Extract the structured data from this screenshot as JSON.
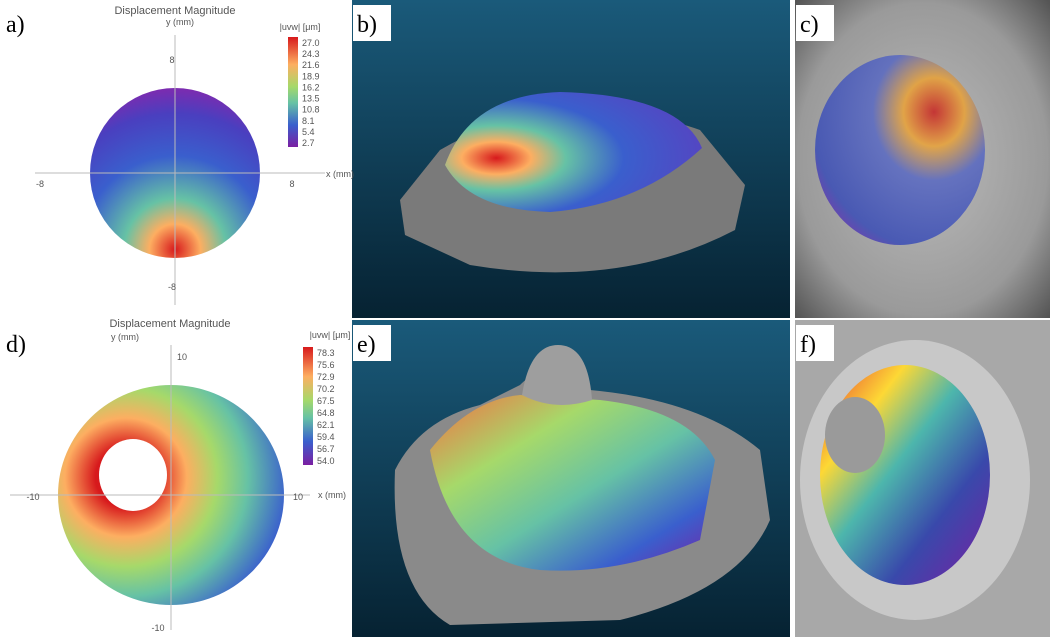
{
  "panels": [
    {
      "label": "a)",
      "title": "Displacement Magnitude",
      "y_axis_label": "y (mm)",
      "x_axis_label": "x (mm)",
      "x_ticks": [
        "-8",
        "8"
      ],
      "y_ticks": [
        "8",
        "-8"
      ],
      "colorbar_title": "|uvw| [μm]",
      "colorbar_ticks": [
        "27.0",
        "24.3",
        "21.6",
        "18.9",
        "16.2",
        "13.5",
        "10.8",
        "8.1",
        "5.4",
        "2.7"
      ]
    },
    {
      "label": "b)"
    },
    {
      "label": "c)"
    },
    {
      "label": "d)",
      "title": "Displacement Magnitude",
      "y_axis_label": "y (mm)",
      "x_axis_label": "x (mm)",
      "x_ticks": [
        "-10",
        "10"
      ],
      "y_ticks": [
        "10",
        "-10"
      ],
      "colorbar_title": "|uvw| [μm]",
      "colorbar_ticks": [
        "78.3",
        "75.6",
        "72.9",
        "70.2",
        "67.5",
        "64.8",
        "62.1",
        "59.4",
        "56.7",
        "54.0"
      ]
    },
    {
      "label": "e)"
    },
    {
      "label": "f)"
    }
  ]
}
